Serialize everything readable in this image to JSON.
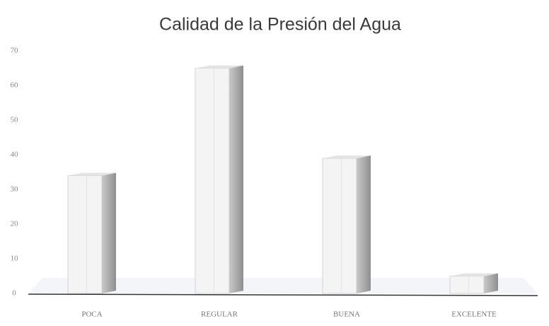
{
  "chart_data": {
    "type": "bar",
    "title": "Calidad de la Presión del Agua",
    "categories": [
      "POCA",
      "REGULAR",
      "BUENA",
      "EXCELENTE"
    ],
    "values": [
      34,
      65,
      39,
      5
    ],
    "color": "#f4f4f4",
    "ylim": [
      0,
      70
    ],
    "yticks": [
      0,
      10,
      20,
      30,
      40,
      50,
      60,
      70
    ],
    "grid": false
  }
}
